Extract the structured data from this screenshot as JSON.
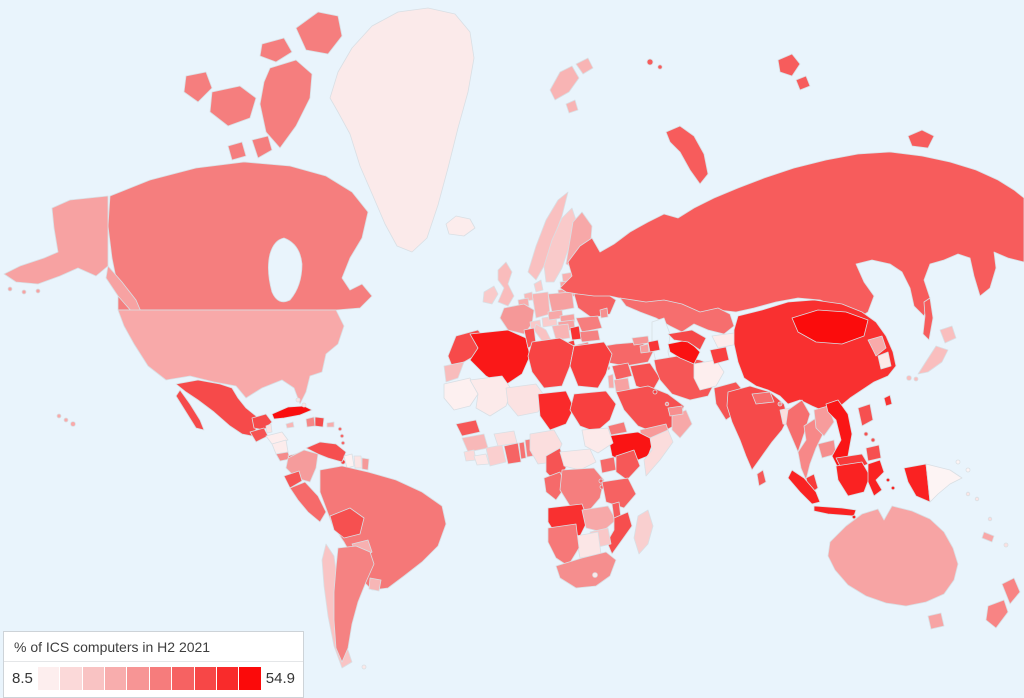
{
  "legend": {
    "title": "% of ICS computers in H2 2021",
    "min_label": "8.5",
    "max_label": "54.9",
    "gradient_stops": [
      "#fdeeee",
      "#fbd9d9",
      "#f9c3c3",
      "#f8adad",
      "#f79595",
      "#f67c7c",
      "#f66262",
      "#f74747",
      "#f92b2b",
      "#fb0a0a"
    ]
  },
  "map": {
    "sea_color": "#e9f4fc",
    "border_color": "#d9dfe4",
    "regions": [
      {
        "id": "greenland",
        "color": "#fbeaea"
      },
      {
        "id": "iceland",
        "color": "#fcecec"
      },
      {
        "id": "svalbard",
        "color": "#f8b4b4"
      },
      {
        "id": "canada",
        "color": "#f57e7e"
      },
      {
        "id": "alaska",
        "color": "#f7a2a2"
      },
      {
        "id": "usa",
        "color": "#f8a9a9"
      },
      {
        "id": "mexico",
        "color": "#f64a4a"
      },
      {
        "id": "guatemala",
        "color": "#f65252"
      },
      {
        "id": "belize",
        "color": "#fbe2e2"
      },
      {
        "id": "honduras",
        "color": "#fdeeee"
      },
      {
        "id": "nicaragua",
        "color": "#fcecec"
      },
      {
        "id": "costa-rica",
        "color": "#f58a8a"
      },
      {
        "id": "panama",
        "color": "#f65c5c"
      },
      {
        "id": "cuba",
        "color": "#fa0f0f"
      },
      {
        "id": "jamaica",
        "color": "#f8b6b6"
      },
      {
        "id": "haiti",
        "color": "#f58888"
      },
      {
        "id": "dominican-republic",
        "color": "#f64c4c"
      },
      {
        "id": "puerto-rico",
        "color": "#f8acac"
      },
      {
        "id": "bahamas",
        "color": "#fbe4e4"
      },
      {
        "id": "lesser-antilles",
        "color": "#f66666"
      },
      {
        "id": "trinidad",
        "color": "#f93a3a"
      },
      {
        "id": "colombia",
        "color": "#f59c9c"
      },
      {
        "id": "venezuela",
        "color": "#f64f4f"
      },
      {
        "id": "guyana",
        "color": "#fdf2f2"
      },
      {
        "id": "suriname",
        "color": "#fbe4e4"
      },
      {
        "id": "french-guiana",
        "color": "#f59a9a"
      },
      {
        "id": "ecuador",
        "color": "#f65454"
      },
      {
        "id": "peru",
        "color": "#f66a6a"
      },
      {
        "id": "brazil",
        "color": "#f57878"
      },
      {
        "id": "bolivia",
        "color": "#f65050"
      },
      {
        "id": "paraguay",
        "color": "#f7b0b0"
      },
      {
        "id": "chile",
        "color": "#f9c4c4"
      },
      {
        "id": "argentina",
        "color": "#f58282"
      },
      {
        "id": "uruguay",
        "color": "#f7b6b6"
      },
      {
        "id": "falkland-islands",
        "color": "#fbe8e8"
      },
      {
        "id": "ireland",
        "color": "#f9caca"
      },
      {
        "id": "uk",
        "color": "#f9bcbc"
      },
      {
        "id": "norway",
        "color": "#f9c0c0"
      },
      {
        "id": "sweden",
        "color": "#f9caca"
      },
      {
        "id": "finland",
        "color": "#f7a8a8"
      },
      {
        "id": "denmark",
        "color": "#facaca"
      },
      {
        "id": "estonia",
        "color": "#f8b0b0"
      },
      {
        "id": "latvia",
        "color": "#f7a4a4"
      },
      {
        "id": "lithuania",
        "color": "#f7a0a0"
      },
      {
        "id": "belarus",
        "color": "#f75454"
      },
      {
        "id": "poland",
        "color": "#f6a0a0"
      },
      {
        "id": "germany",
        "color": "#f8b2b2"
      },
      {
        "id": "netherlands",
        "color": "#f8b8b8"
      },
      {
        "id": "belgium",
        "color": "#f7acac"
      },
      {
        "id": "france",
        "color": "#f59898"
      },
      {
        "id": "switzerland",
        "color": "#fac8c8"
      },
      {
        "id": "austria",
        "color": "#facccc"
      },
      {
        "id": "czechia",
        "color": "#f7a8a8"
      },
      {
        "id": "slovakia",
        "color": "#f7a0a0"
      },
      {
        "id": "hungary",
        "color": "#f7a2a2"
      },
      {
        "id": "ukraine",
        "color": "#f66262"
      },
      {
        "id": "moldova",
        "color": "#f69090"
      },
      {
        "id": "romania",
        "color": "#f67e7e"
      },
      {
        "id": "bulgaria",
        "color": "#f58282"
      },
      {
        "id": "serbia",
        "color": "#f93232"
      },
      {
        "id": "balkans-west",
        "color": "#f8b4b4"
      },
      {
        "id": "albania",
        "color": "#f93a3a"
      },
      {
        "id": "greece",
        "color": "#f58a8a"
      },
      {
        "id": "italy",
        "color": "#f9c2c2"
      },
      {
        "id": "spain",
        "color": "#f58c8c"
      },
      {
        "id": "portugal",
        "color": "#f57c7c"
      },
      {
        "id": "cyprus",
        "color": "#f78f8f"
      },
      {
        "id": "russia",
        "color": "#f75c5c"
      },
      {
        "id": "kazakhstan",
        "color": "#f66e6e"
      },
      {
        "id": "turkey",
        "color": "#f66868"
      },
      {
        "id": "georgia",
        "color": "#f69494"
      },
      {
        "id": "azerbaijan",
        "color": "#f93636"
      },
      {
        "id": "armenia",
        "color": "#f7a0a0"
      },
      {
        "id": "syria",
        "color": "#f66060"
      },
      {
        "id": "israel",
        "color": "#f8aaaa"
      },
      {
        "id": "jordan",
        "color": "#f7a2a2"
      },
      {
        "id": "iraq",
        "color": "#f65050"
      },
      {
        "id": "saudi-arabia",
        "color": "#f65050"
      },
      {
        "id": "kuwait",
        "color": "#f73d3d"
      },
      {
        "id": "yemen",
        "color": "#f79a9a"
      },
      {
        "id": "oman",
        "color": "#f7a8a8"
      },
      {
        "id": "uae",
        "color": "#f78e8e"
      },
      {
        "id": "qatar",
        "color": "#f78a8a"
      },
      {
        "id": "iran",
        "color": "#f65656"
      },
      {
        "id": "afghanistan",
        "color": "#fdeeee"
      },
      {
        "id": "turkmenistan",
        "color": "#fa1212"
      },
      {
        "id": "uzbekistan",
        "color": "#f64848"
      },
      {
        "id": "kyrgyzstan",
        "color": "#fcecec"
      },
      {
        "id": "tajikistan",
        "color": "#f94040"
      },
      {
        "id": "pakistan",
        "color": "#f65454"
      },
      {
        "id": "india",
        "color": "#f64a4a"
      },
      {
        "id": "nepal",
        "color": "#f66e6e"
      },
      {
        "id": "bhutan",
        "color": "#f68888"
      },
      {
        "id": "bangladesh",
        "color": "#fbdede"
      },
      {
        "id": "sri-lanka",
        "color": "#f65858"
      },
      {
        "id": "china",
        "color": "#f93030"
      },
      {
        "id": "mongolia",
        "color": "#fb0c0c"
      },
      {
        "id": "taiwan",
        "color": "#f93333"
      },
      {
        "id": "north-korea",
        "color": "#f8aaaa"
      },
      {
        "id": "south-korea",
        "color": "#fce9e9"
      },
      {
        "id": "japan",
        "color": "#f9bebe"
      },
      {
        "id": "myanmar",
        "color": "#f66e6e"
      },
      {
        "id": "thailand",
        "color": "#f78888"
      },
      {
        "id": "laos",
        "color": "#f79c9c"
      },
      {
        "id": "cambodia",
        "color": "#f58e8e"
      },
      {
        "id": "vietnam",
        "color": "#fa1616"
      },
      {
        "id": "malaysia",
        "color": "#f83a3a"
      },
      {
        "id": "indonesia",
        "color": "#fa2222"
      },
      {
        "id": "papua-new-guinea",
        "color": "#fdf4f4"
      },
      {
        "id": "philippines",
        "color": "#f65050"
      },
      {
        "id": "timor-leste",
        "color": "#fbe2e2"
      },
      {
        "id": "morocco",
        "color": "#f74a4a"
      },
      {
        "id": "western-sahara",
        "color": "#f8bcbc"
      },
      {
        "id": "algeria",
        "color": "#fa1818"
      },
      {
        "id": "tunisia",
        "color": "#f75252"
      },
      {
        "id": "libya",
        "color": "#f84444"
      },
      {
        "id": "egypt",
        "color": "#f83e3e"
      },
      {
        "id": "mauritania",
        "color": "#fdf0f0"
      },
      {
        "id": "mali",
        "color": "#fceaea"
      },
      {
        "id": "niger",
        "color": "#fbe2e2"
      },
      {
        "id": "chad",
        "color": "#fa2a2a"
      },
      {
        "id": "sudan",
        "color": "#f84040"
      },
      {
        "id": "eritrea",
        "color": "#f67878"
      },
      {
        "id": "djibouti",
        "color": "#f67c7c"
      },
      {
        "id": "ethiopia",
        "color": "#fa1414"
      },
      {
        "id": "somalia",
        "color": "#fbdcdc"
      },
      {
        "id": "senegal",
        "color": "#f65858"
      },
      {
        "id": "guinea",
        "color": "#f8b8b8"
      },
      {
        "id": "sierra-leone",
        "color": "#fbdada"
      },
      {
        "id": "liberia",
        "color": "#fce8e8"
      },
      {
        "id": "ivory-coast",
        "color": "#facfcf"
      },
      {
        "id": "burkina-faso",
        "color": "#fbe0e0"
      },
      {
        "id": "ghana",
        "color": "#f66464"
      },
      {
        "id": "togo",
        "color": "#f67272"
      },
      {
        "id": "benin",
        "color": "#f68080"
      },
      {
        "id": "nigeria",
        "color": "#fbdede"
      },
      {
        "id": "cameroon",
        "color": "#f65454"
      },
      {
        "id": "central-african-republic",
        "color": "#fbe8e8"
      },
      {
        "id": "south-sudan",
        "color": "#fceaea"
      },
      {
        "id": "uganda",
        "color": "#f66a6a"
      },
      {
        "id": "kenya",
        "color": "#f65858"
      },
      {
        "id": "congo",
        "color": "#f66a6a"
      },
      {
        "id": "drc",
        "color": "#f57e7e"
      },
      {
        "id": "rwanda-burundi",
        "color": "#f66666"
      },
      {
        "id": "tanzania",
        "color": "#f66262"
      },
      {
        "id": "angola",
        "color": "#f93030"
      },
      {
        "id": "zambia",
        "color": "#f7a8a8"
      },
      {
        "id": "malawi",
        "color": "#f65c5c"
      },
      {
        "id": "mozambique",
        "color": "#f64e4e"
      },
      {
        "id": "zimbabwe",
        "color": "#f9c8c8"
      },
      {
        "id": "botswana",
        "color": "#fbe6e6"
      },
      {
        "id": "namibia",
        "color": "#f67878"
      },
      {
        "id": "south-africa",
        "color": "#f58e8e"
      },
      {
        "id": "lesotho",
        "color": "#fbeaea"
      },
      {
        "id": "madagascar",
        "color": "#f9cfcf"
      },
      {
        "id": "australia",
        "color": "#f7a4a4"
      },
      {
        "id": "new-zealand",
        "color": "#f88484"
      },
      {
        "id": "new-caledonia",
        "color": "#f8a8a8"
      },
      {
        "id": "fiji",
        "color": "#fbe0e0"
      },
      {
        "id": "vanuatu",
        "color": "#fbdddd"
      },
      {
        "id": "solomon-islands",
        "color": "#fbe6e6"
      }
    ]
  }
}
